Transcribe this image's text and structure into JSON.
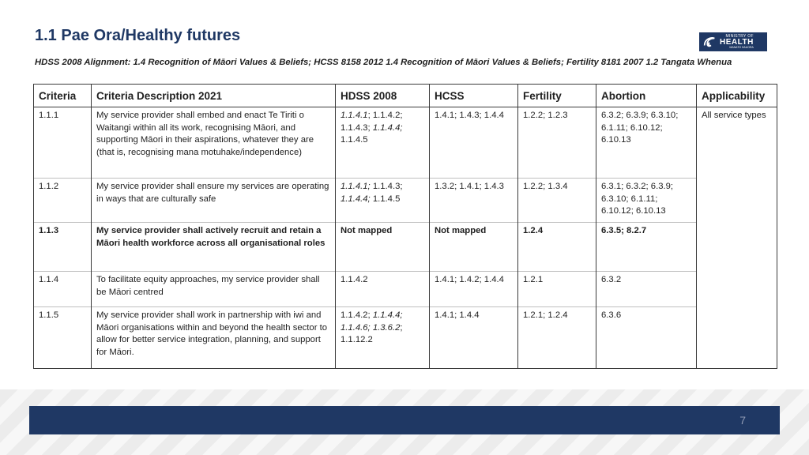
{
  "title": "1.1 Pae Ora/Healthy futures",
  "subtitle": "HDSS 2008 Alignment: 1.4 Recognition of Māori Values & Beliefs; HCSS 8158 2012 1.4 Recognition of Māori Values & Beliefs; Fertility 8181 2007 1.2 Tangata Whenua",
  "logo": {
    "line1": "MINISTRY OF",
    "line2": "HEALTH",
    "line3": "MANATŪ HAUORA"
  },
  "headers": [
    "Criteria",
    "Criteria Description 2021",
    "HDSS 2008",
    "HCSS",
    "Fertility",
    "Abortion",
    "Applicability"
  ],
  "applicability": "All service types",
  "rows": [
    {
      "criteria": "1.1.1",
      "description": "My service provider shall embed and enact Te Tiriti o Waitangi within all its work, recognising Māori, and supporting Māori in their aspirations, whatever they are (that is, recognising mana motuhake/independence)",
      "hdss": [
        {
          "t": "1.1.4.1",
          "i": true
        },
        {
          "t": "; 1.1.4.2; 1.1.4.3; ",
          "i": false
        },
        {
          "t": "1.1.4.4;",
          "i": true
        },
        {
          "t": " 1.1.4.5",
          "i": false
        }
      ],
      "hcss": "1.4.1; 1.4.3; 1.4.4",
      "fertility": "1.2.2; 1.2.3",
      "abortion": "6.3.2; 6.3.9; 6.3.10; 6.1.11; 6.10.12; 6.10.13"
    },
    {
      "criteria": "1.1.2",
      "description": "My service provider shall ensure my services are operating in ways that are culturally safe",
      "hdss": [
        {
          "t": "1.1.4.1;",
          "i": true
        },
        {
          "t": " 1.1.4.3; ",
          "i": false
        },
        {
          "t": "1.1.4.4;",
          "i": true
        },
        {
          "t": " 1.1.4.5",
          "i": false
        }
      ],
      "hcss": "1.3.2; 1.4.1; 1.4.3",
      "fertility": "1.2.2; 1.3.4",
      "abortion": "6.3.1; 6.3.2; 6.3.9; 6.3.10; 6.1.11; 6.10.12; 6.10.13"
    },
    {
      "criteria": "1.1.3",
      "description": "My service provider shall actively recruit and retain a Māori health workforce across all organisational roles",
      "hdss": [
        {
          "t": "Not mapped",
          "i": false
        }
      ],
      "hcss": "Not mapped",
      "fertility": "1.2.4",
      "abortion": "6.3.5; 8.2.7",
      "bold": true
    },
    {
      "criteria": "1.1.4",
      "description": "To facilitate equity approaches, my service provider shall be Māori centred",
      "hdss": [
        {
          "t": "1.1.4.2",
          "i": false
        }
      ],
      "hcss": "1.4.1; 1.4.2; 1.4.4",
      "fertility": "1.2.1",
      "abortion": "6.3.2"
    },
    {
      "criteria": "1.1.5",
      "description": "My service provider shall work in partnership with iwi and Māori organisations within and beyond the health sector to allow for better service integration, planning, and support  for Māori.",
      "hdss": [
        {
          "t": "1.1.4.2; ",
          "i": false
        },
        {
          "t": "1.1.4.4; 1.1.4.6; 1.3.6.2",
          "i": true
        },
        {
          "t": "; 1.1.12.2",
          "i": false
        }
      ],
      "hcss": "1.4.1; 1.4.4",
      "fertility": "1.2.1; 1.2.4",
      "abortion": "6.3.6"
    }
  ],
  "page_number": "7",
  "colors": {
    "title": "#1f3864",
    "bar": "#1f3864"
  }
}
